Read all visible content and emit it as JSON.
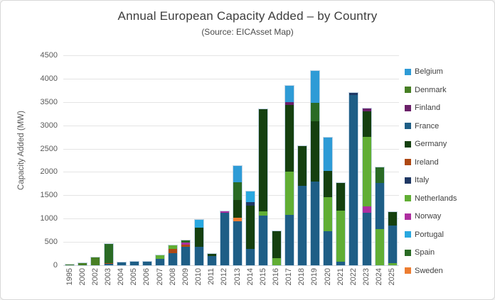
{
  "frame": {
    "background": "#ffffff",
    "border_color": "#d8d8d8"
  },
  "header": {
    "title": "Annual European Capacity Added – by Country",
    "subtitle": "(Source: EICAsset Map)"
  },
  "chart_data": {
    "type": "bar",
    "stacked": true,
    "title": "Annual European Capacity Added – by Country",
    "subtitle": "(Source: EICAsset Map)",
    "xlabel": "",
    "ylabel": "Capacity Added (MW)",
    "ylim": [
      0,
      4500
    ],
    "ytick_step": 500,
    "yticks": [
      0,
      500,
      1000,
      1500,
      2000,
      2500,
      3000,
      3500,
      4000,
      4500
    ],
    "grid": true,
    "legend_position": "right",
    "grid_color": "#e4e4e4",
    "axis_text_color": "#595959",
    "categories": [
      "1995",
      "2000",
      "2002",
      "2003",
      "2004",
      "2005",
      "2006",
      "2007",
      "2008",
      "2009",
      "2010",
      "2011",
      "2012",
      "2013",
      "2014",
      "2015",
      "2016",
      "2017",
      "2018",
      "2019",
      "2020",
      "2021",
      "2022",
      "2023",
      "2024",
      "2025"
    ],
    "countries": [
      {
        "name": "Belgium",
        "color": "#2e9bd6"
      },
      {
        "name": "Denmark",
        "color": "#477f24"
      },
      {
        "name": "Finland",
        "color": "#6b2069"
      },
      {
        "name": "France",
        "color": "#1e5e86"
      },
      {
        "name": "Germany",
        "color": "#15400f"
      },
      {
        "name": "Ireland",
        "color": "#ae4813"
      },
      {
        "name": "Italy",
        "color": "#1f3864"
      },
      {
        "name": "Netherlands",
        "color": "#61ae34"
      },
      {
        "name": "Norway",
        "color": "#ae2fa0"
      },
      {
        "name": "Portugal",
        "color": "#29a8e0"
      },
      {
        "name": "Spain",
        "color": "#2a6b25"
      },
      {
        "name": "Sweden",
        "color": "#ed7d31"
      }
    ],
    "bars": [
      {
        "year": "1995",
        "segments": [
          [
            "Denmark",
            10
          ]
        ]
      },
      {
        "year": "2000",
        "segments": [
          [
            "Denmark",
            50
          ]
        ]
      },
      {
        "year": "2002",
        "segments": [
          [
            "Denmark",
            160
          ]
        ]
      },
      {
        "year": "2003",
        "segments": [
          [
            "France",
            25
          ],
          [
            "Ireland",
            25
          ],
          [
            "Spain",
            410
          ]
        ]
      },
      {
        "year": "2004",
        "segments": [
          [
            "France",
            55
          ]
        ]
      },
      {
        "year": "2005",
        "segments": [
          [
            "France",
            75
          ]
        ]
      },
      {
        "year": "2006",
        "segments": [
          [
            "France",
            75
          ]
        ]
      },
      {
        "year": "2007",
        "segments": [
          [
            "France",
            135
          ],
          [
            "Netherlands",
            75
          ]
        ]
      },
      {
        "year": "2008",
        "segments": [
          [
            "France",
            260
          ],
          [
            "Ireland",
            90
          ],
          [
            "Netherlands",
            70
          ]
        ]
      },
      {
        "year": "2009",
        "segments": [
          [
            "France",
            400
          ],
          [
            "Ireland",
            45
          ],
          [
            "Norway",
            35
          ],
          [
            "Spain",
            50
          ]
        ]
      },
      {
        "year": "2010",
        "segments": [
          [
            "France",
            400
          ],
          [
            "Germany",
            400
          ],
          [
            "Portugal",
            170
          ]
        ]
      },
      {
        "year": "2011",
        "segments": [
          [
            "France",
            200
          ],
          [
            "Germany",
            50
          ]
        ]
      },
      {
        "year": "2012",
        "segments": [
          [
            "France",
            1130
          ],
          [
            "Norway",
            30
          ]
        ]
      },
      {
        "year": "2013",
        "segments": [
          [
            "France",
            950
          ],
          [
            "Sweden",
            75
          ],
          [
            "Germany",
            370
          ],
          [
            "Spain",
            390
          ],
          [
            "Belgium",
            340
          ]
        ]
      },
      {
        "year": "2014",
        "segments": [
          [
            "France",
            350
          ],
          [
            "Germany",
            930
          ],
          [
            "Italy",
            75
          ],
          [
            "Portugal",
            230
          ]
        ]
      },
      {
        "year": "2015",
        "segments": [
          [
            "France",
            1060
          ],
          [
            "Netherlands",
            100
          ],
          [
            "Germany",
            2180
          ]
        ]
      },
      {
        "year": "2016",
        "segments": [
          [
            "Netherlands",
            150
          ],
          [
            "Germany",
            580
          ]
        ]
      },
      {
        "year": "2017",
        "segments": [
          [
            "France",
            1080
          ],
          [
            "Netherlands",
            920
          ],
          [
            "Germany",
            1440
          ],
          [
            "Finland",
            60
          ],
          [
            "Belgium",
            350
          ]
        ]
      },
      {
        "year": "2018",
        "segments": [
          [
            "France",
            1700
          ],
          [
            "Germany",
            850
          ]
        ]
      },
      {
        "year": "2019",
        "segments": [
          [
            "France",
            1800
          ],
          [
            "Germany",
            1280
          ],
          [
            "Spain",
            400
          ],
          [
            "Belgium",
            680
          ]
        ]
      },
      {
        "year": "2020",
        "segments": [
          [
            "France",
            730
          ],
          [
            "Netherlands",
            730
          ],
          [
            "Germany",
            560
          ],
          [
            "Belgium",
            710
          ]
        ]
      },
      {
        "year": "2021",
        "segments": [
          [
            "France",
            70
          ],
          [
            "Netherlands",
            1100
          ],
          [
            "Germany",
            600
          ]
        ]
      },
      {
        "year": "2022",
        "segments": [
          [
            "France",
            3650
          ],
          [
            "Italy",
            50
          ]
        ]
      },
      {
        "year": "2023",
        "segments": [
          [
            "France",
            1130
          ],
          [
            "Norway",
            125
          ],
          [
            "Netherlands",
            1490
          ],
          [
            "Germany",
            560
          ],
          [
            "Finland",
            50
          ]
        ]
      },
      {
        "year": "2024",
        "segments": [
          [
            "Netherlands",
            780
          ],
          [
            "France",
            985
          ],
          [
            "Spain",
            340
          ]
        ]
      },
      {
        "year": "2025",
        "segments": [
          [
            "Netherlands",
            45
          ],
          [
            "France",
            810
          ],
          [
            "Germany",
            280
          ]
        ]
      }
    ]
  }
}
